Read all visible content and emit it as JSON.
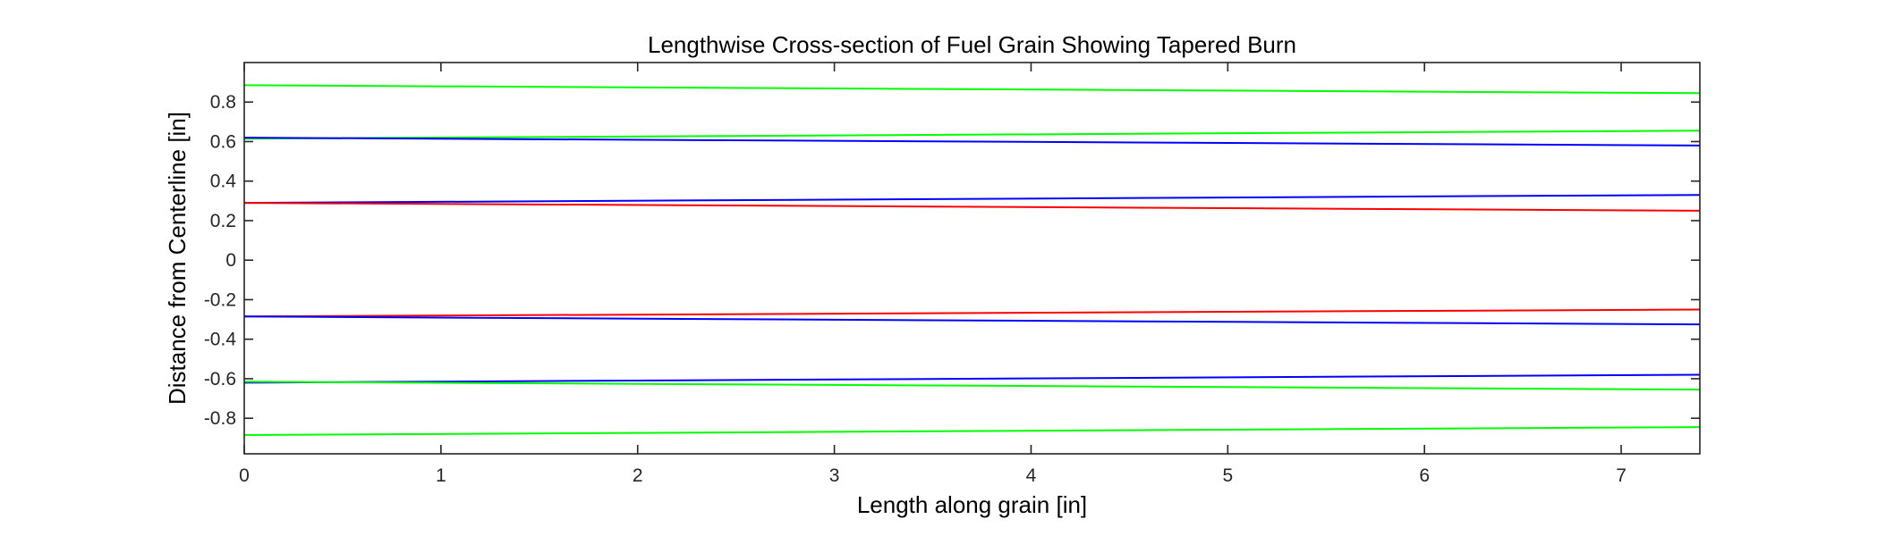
{
  "chart_data": {
    "type": "line",
    "title": "Lengthwise Cross-section of Fuel Grain Showing Tapered Burn",
    "xlabel": "Length along grain [in]",
    "ylabel": "Distance from Centerline [in]",
    "xlim": [
      0,
      7.4
    ],
    "ylim": [
      -0.98,
      1.0
    ],
    "xticks": [
      0,
      1,
      2,
      3,
      4,
      5,
      6,
      7
    ],
    "xtick_labels": [
      "0",
      "1",
      "2",
      "3",
      "4",
      "5",
      "6",
      "7"
    ],
    "yticks": [
      -0.8,
      -0.6,
      -0.4,
      -0.2,
      0,
      0.2,
      0.4,
      0.6,
      0.8
    ],
    "ytick_labels": [
      "-0.8",
      "-0.6",
      "-0.4",
      "-0.2",
      "0",
      "0.2",
      "0.4",
      "0.6",
      "0.8"
    ],
    "grid": false,
    "x": [
      0,
      7.4
    ],
    "series": [
      {
        "color": "#00ff00",
        "values": [
          0.885,
          0.845
        ]
      },
      {
        "color": "#00ff00",
        "values": [
          0.615,
          0.655
        ]
      },
      {
        "color": "#0000ff",
        "values": [
          0.62,
          0.58
        ]
      },
      {
        "color": "#0000ff",
        "values": [
          0.29,
          0.33
        ]
      },
      {
        "color": "#ff0000",
        "values": [
          0.29,
          0.25
        ]
      },
      {
        "color": "#ff0000",
        "values": [
          -0.285,
          -0.25
        ]
      },
      {
        "color": "#0000ff",
        "values": [
          -0.285,
          -0.325
        ]
      },
      {
        "color": "#0000ff",
        "values": [
          -0.62,
          -0.58
        ]
      },
      {
        "color": "#00ff00",
        "values": [
          -0.615,
          -0.655
        ]
      },
      {
        "color": "#00ff00",
        "values": [
          -0.885,
          -0.845
        ]
      }
    ]
  }
}
